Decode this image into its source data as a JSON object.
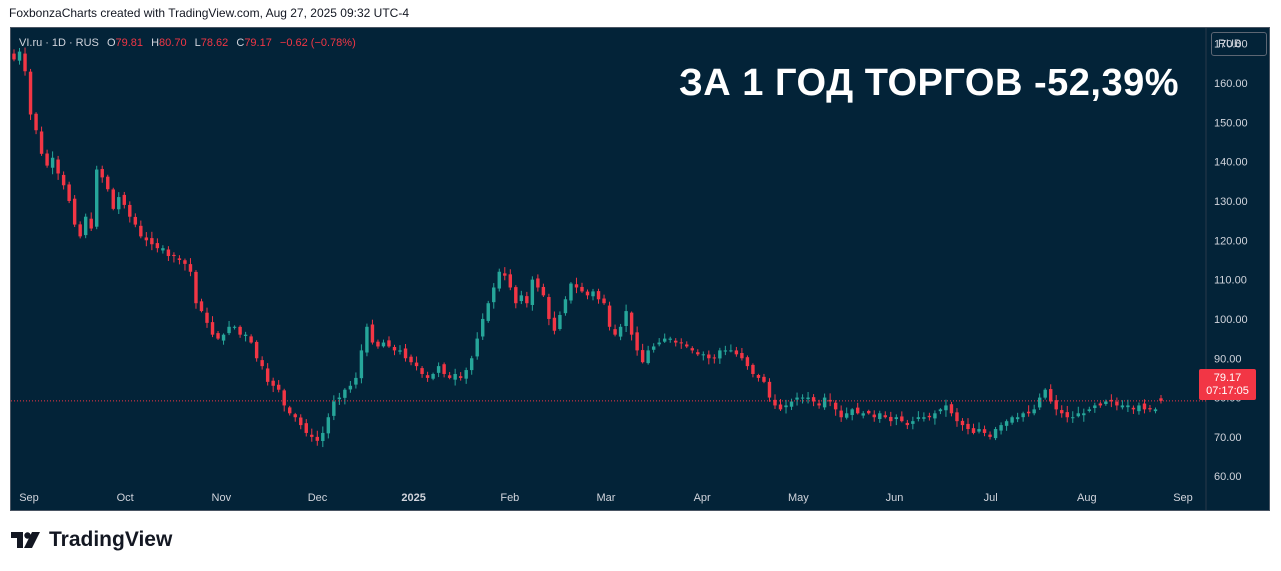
{
  "attribution": "FoxbonzaCharts created with TradingView.com, Aug 27, 2025 09:32 UTC-4",
  "legend": {
    "symbol": "VI.ru",
    "interval": "1D",
    "exchange": "RUS",
    "open_label": "O",
    "open": "79.81",
    "high_label": "H",
    "high": "80.70",
    "low_label": "L",
    "low": "78.62",
    "close_label": "C",
    "close": "79.17",
    "change": "−0.62 (−0.78%)"
  },
  "overlay_title": "ЗА 1 ГОД ТОРГОВ -52,39%",
  "currency": "RUB",
  "price_tag": {
    "price": "79.17",
    "countdown": "07:17:05"
  },
  "footer": {
    "brand": "TradingView"
  },
  "colors": {
    "background": "#032338",
    "up": "#26a69a",
    "down": "#f23645",
    "axis_text": "#d1d4dc"
  },
  "chart_data": {
    "type": "candlestick",
    "title": "",
    "y_ticks": [
      "170.00",
      "160.00",
      "150.00",
      "140.00",
      "130.00",
      "120.00",
      "110.00",
      "100.00",
      "90.00",
      "80.00",
      "70.00",
      "60.00"
    ],
    "y_tick_values": [
      170,
      160,
      150,
      140,
      130,
      120,
      110,
      100,
      90,
      80,
      70,
      60
    ],
    "x_ticks": [
      "Sep",
      "Oct",
      "Nov",
      "Dec",
      "2025",
      "Feb",
      "Mar",
      "Apr",
      "May",
      "Jun",
      "Jul",
      "Aug",
      "Sep"
    ],
    "ylim": [
      57,
      174
    ],
    "current_price": 79.17,
    "grid": false,
    "closes": [
      166,
      168,
      163,
      152,
      148,
      142,
      139,
      141,
      137,
      134,
      130,
      124,
      121,
      126,
      123,
      138,
      136,
      133,
      128,
      131,
      129,
      126,
      124,
      121,
      120,
      119,
      118,
      118,
      116,
      116,
      115,
      114,
      112,
      104,
      102,
      99,
      96,
      95,
      96,
      98,
      98,
      96,
      96,
      94,
      90,
      88,
      84,
      83,
      82,
      78,
      76,
      75,
      73,
      71,
      70,
      69,
      71,
      75,
      79,
      80,
      82,
      83,
      85,
      92,
      98,
      94,
      93,
      94,
      93,
      92,
      92,
      90,
      89,
      88,
      86,
      85,
      86,
      88,
      86,
      85,
      86,
      85,
      87,
      90,
      95,
      100,
      104,
      108,
      112,
      111,
      108,
      104,
      106,
      104,
      110,
      108,
      106,
      100,
      97,
      101,
      105,
      109,
      108,
      107,
      106,
      107,
      105,
      104,
      98,
      96,
      98,
      102,
      96,
      92,
      89,
      92,
      93,
      94,
      95,
      95,
      94,
      94,
      93,
      92,
      91,
      91,
      90,
      90,
      92,
      92,
      92,
      91,
      90,
      88,
      86,
      85,
      84,
      80,
      78,
      77,
      78,
      79,
      80,
      80,
      80,
      79,
      78,
      80,
      79,
      77,
      75,
      76,
      77,
      76,
      76,
      76,
      75,
      76,
      75,
      74,
      75,
      74,
      73,
      74,
      75,
      75,
      75,
      76,
      77,
      78,
      76,
      74,
      73,
      72,
      71,
      72,
      71,
      70,
      72,
      73,
      74,
      75,
      75,
      76,
      76,
      77,
      80,
      82,
      79,
      77,
      76,
      75,
      75,
      76,
      76,
      77,
      78,
      78,
      79,
      79,
      78,
      78,
      78,
      77,
      78,
      77,
      77,
      77,
      79.17
    ]
  }
}
